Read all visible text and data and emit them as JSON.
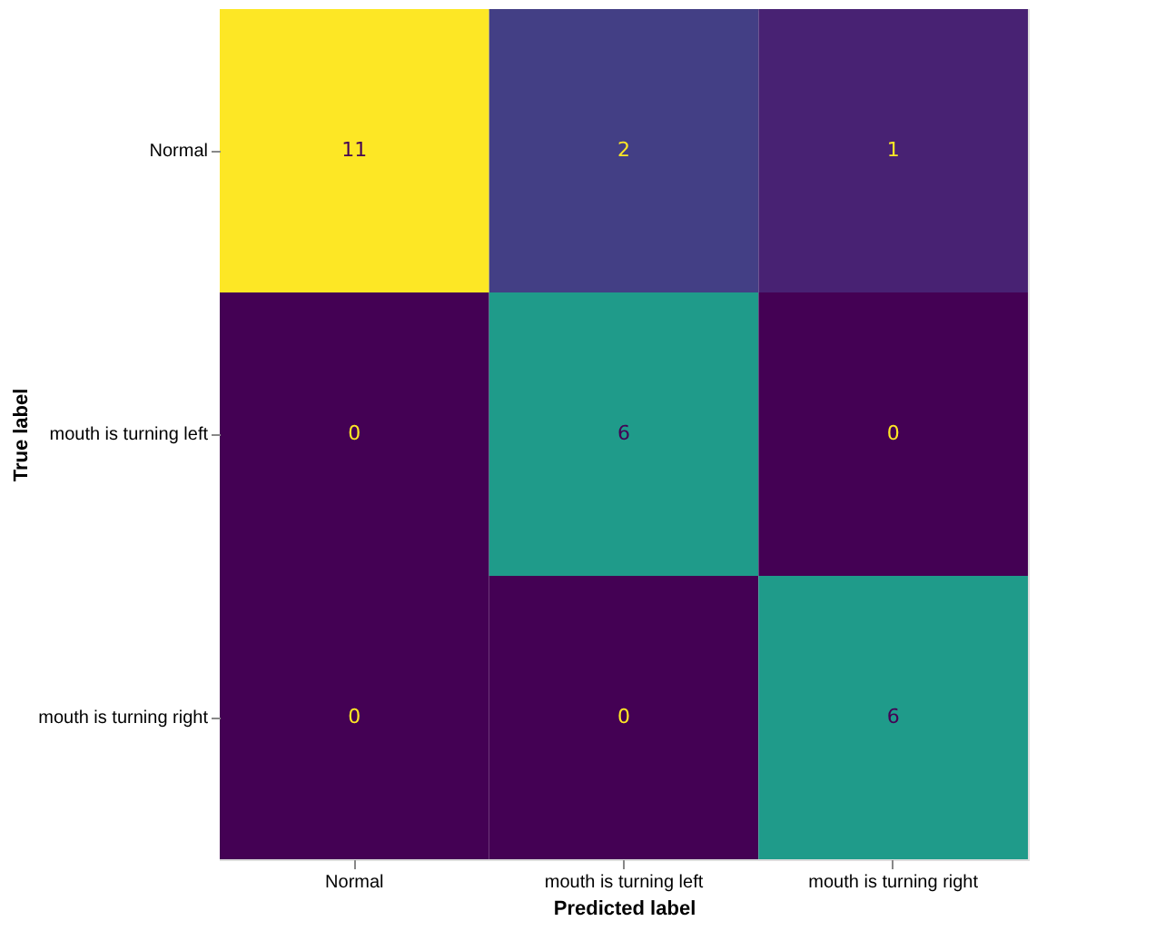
{
  "chart_data": {
    "type": "heatmap",
    "xlabel": "Predicted label",
    "ylabel": "True label",
    "categories": [
      "Normal",
      "mouth is turning left",
      "mouth is turning right"
    ],
    "y_categories": [
      "Normal",
      "mouth is turning left",
      "mouth is turning right"
    ],
    "cells": [
      [
        11,
        2,
        1
      ],
      [
        0,
        6,
        0
      ],
      [
        0,
        0,
        6
      ]
    ],
    "data_labels": true,
    "grid": false,
    "legend": false
  }
}
